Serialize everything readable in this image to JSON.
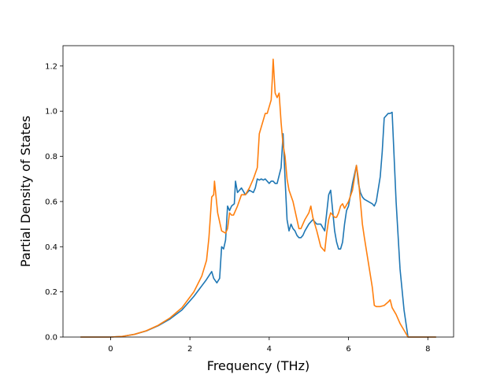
{
  "chart_data": {
    "type": "line",
    "title": "",
    "xlabel": "Frequency (THz)",
    "ylabel": "Partial Density of States",
    "xlim": [
      -1.2,
      8.65
    ],
    "ylim": [
      0.0,
      1.29
    ],
    "xticks": [
      0,
      2,
      4,
      6,
      8
    ],
    "xtick_labels": [
      "0",
      "2",
      "4",
      "6",
      "8"
    ],
    "yticks": [
      0.0,
      0.2,
      0.4,
      0.6,
      0.8,
      1.0,
      1.2
    ],
    "ytick_labels": [
      "0.0",
      "0.2",
      "0.4",
      "0.6",
      "0.8",
      "1.0",
      "1.2"
    ],
    "grid": false,
    "legend": "none",
    "series": [
      {
        "color": "#1f77b4",
        "x": [
          -0.75,
          -0.4,
          0.0,
          0.3,
          0.6,
          0.9,
          1.2,
          1.5,
          1.8,
          2.1,
          2.4,
          2.55,
          2.6,
          2.68,
          2.75,
          2.8,
          2.85,
          2.9,
          2.95,
          3.0,
          3.05,
          3.12,
          3.15,
          3.2,
          3.3,
          3.4,
          3.5,
          3.6,
          3.65,
          3.7,
          3.75,
          3.8,
          3.85,
          3.9,
          4.0,
          4.05,
          4.1,
          4.15,
          4.2,
          4.3,
          4.35,
          4.4,
          4.45,
          4.5,
          4.55,
          4.6,
          4.65,
          4.7,
          4.75,
          4.8,
          4.85,
          4.9,
          5.0,
          5.1,
          5.2,
          5.3,
          5.4,
          5.5,
          5.55,
          5.6,
          5.65,
          5.7,
          5.75,
          5.8,
          5.85,
          5.9,
          5.95,
          6.0,
          6.1,
          6.2,
          6.25,
          6.3,
          6.35,
          6.4,
          6.5,
          6.6,
          6.65,
          6.7,
          6.8,
          6.85,
          6.9,
          7.0,
          7.05,
          7.1,
          7.2,
          7.3,
          7.4,
          7.5,
          7.6,
          8.0,
          8.2
        ],
        "y": [
          0.0,
          0.0,
          0.0,
          0.003,
          0.012,
          0.027,
          0.05,
          0.08,
          0.12,
          0.18,
          0.25,
          0.29,
          0.26,
          0.24,
          0.26,
          0.4,
          0.39,
          0.43,
          0.58,
          0.56,
          0.58,
          0.59,
          0.69,
          0.64,
          0.66,
          0.63,
          0.65,
          0.64,
          0.66,
          0.7,
          0.695,
          0.7,
          0.695,
          0.7,
          0.68,
          0.69,
          0.69,
          0.68,
          0.68,
          0.75,
          0.9,
          0.7,
          0.52,
          0.47,
          0.5,
          0.48,
          0.47,
          0.45,
          0.44,
          0.44,
          0.45,
          0.47,
          0.5,
          0.52,
          0.5,
          0.5,
          0.47,
          0.63,
          0.65,
          0.56,
          0.47,
          0.42,
          0.39,
          0.39,
          0.42,
          0.5,
          0.56,
          0.58,
          0.68,
          0.76,
          0.68,
          0.64,
          0.62,
          0.61,
          0.6,
          0.59,
          0.58,
          0.6,
          0.71,
          0.82,
          0.97,
          0.99,
          0.99,
          0.995,
          0.6,
          0.3,
          0.12,
          0.0,
          0.0,
          0.0,
          0.0
        ]
      },
      {
        "color": "#ff7f0e",
        "x": [
          -0.75,
          -0.4,
          0.0,
          0.3,
          0.6,
          0.9,
          1.2,
          1.5,
          1.8,
          2.1,
          2.3,
          2.42,
          2.48,
          2.55,
          2.6,
          2.62,
          2.7,
          2.8,
          2.9,
          2.95,
          3.0,
          3.05,
          3.1,
          3.2,
          3.3,
          3.4,
          3.5,
          3.6,
          3.7,
          3.75,
          3.8,
          3.9,
          3.95,
          4.0,
          4.05,
          4.08,
          4.1,
          4.15,
          4.2,
          4.25,
          4.3,
          4.35,
          4.4,
          4.45,
          4.5,
          4.6,
          4.7,
          4.75,
          4.8,
          4.9,
          5.0,
          5.05,
          5.1,
          5.2,
          5.3,
          5.4,
          5.45,
          5.5,
          5.55,
          5.6,
          5.65,
          5.7,
          5.75,
          5.8,
          5.85,
          5.9,
          6.0,
          6.1,
          6.2,
          6.25,
          6.3,
          6.35,
          6.4,
          6.5,
          6.6,
          6.65,
          6.7,
          6.8,
          6.9,
          7.0,
          7.05,
          7.1,
          7.2,
          7.3,
          7.4,
          7.5,
          7.6,
          8.0,
          8.2
        ],
        "y": [
          0.0,
          0.0,
          0.0,
          0.003,
          0.012,
          0.028,
          0.052,
          0.085,
          0.13,
          0.2,
          0.27,
          0.34,
          0.44,
          0.62,
          0.63,
          0.69,
          0.55,
          0.47,
          0.46,
          0.48,
          0.55,
          0.54,
          0.54,
          0.58,
          0.63,
          0.63,
          0.66,
          0.7,
          0.75,
          0.9,
          0.93,
          0.99,
          0.99,
          1.02,
          1.05,
          1.15,
          1.23,
          1.08,
          1.06,
          1.08,
          0.95,
          0.85,
          0.8,
          0.7,
          0.65,
          0.6,
          0.52,
          0.48,
          0.48,
          0.52,
          0.55,
          0.58,
          0.53,
          0.47,
          0.4,
          0.38,
          0.46,
          0.52,
          0.55,
          0.54,
          0.53,
          0.53,
          0.55,
          0.58,
          0.59,
          0.57,
          0.6,
          0.65,
          0.76,
          0.7,
          0.6,
          0.5,
          0.44,
          0.33,
          0.22,
          0.14,
          0.135,
          0.135,
          0.14,
          0.155,
          0.165,
          0.13,
          0.1,
          0.06,
          0.03,
          0.0,
          0.0,
          0.0,
          0.0
        ]
      }
    ]
  }
}
